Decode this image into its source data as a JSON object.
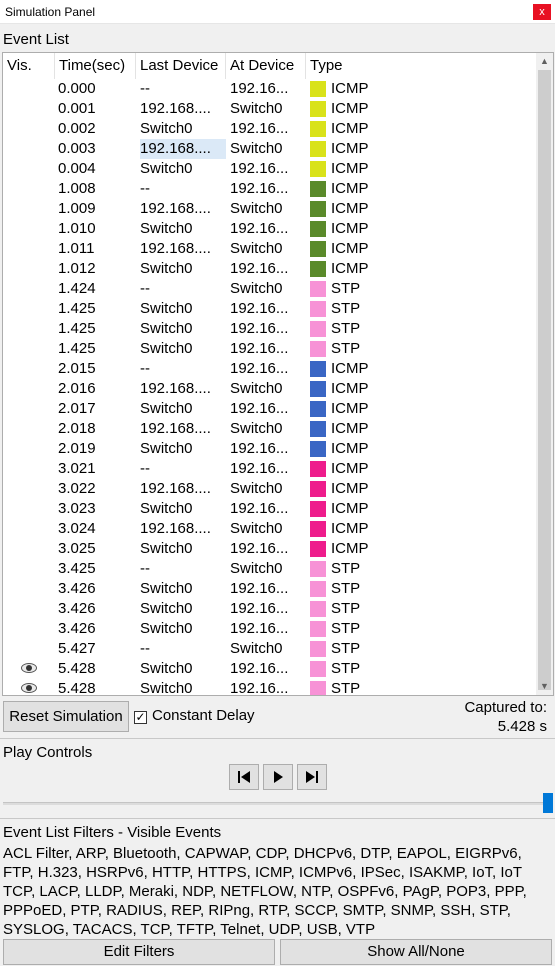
{
  "window": {
    "title": "Simulation Panel",
    "close_label": "x"
  },
  "event_list": {
    "label": "Event List",
    "columns": [
      "Vis.",
      "Time(sec)",
      "Last Device",
      "At Device",
      "Type"
    ],
    "rows": [
      {
        "vis": "",
        "time": "0.000",
        "last": "--",
        "at": "192.16...",
        "color": "#d9e21a",
        "type": "ICMP"
      },
      {
        "vis": "",
        "time": "0.001",
        "last": "192.168....",
        "at": "Switch0",
        "color": "#d9e21a",
        "type": "ICMP"
      },
      {
        "vis": "",
        "time": "0.002",
        "last": "Switch0",
        "at": "192.16...",
        "color": "#d9e21a",
        "type": "ICMP"
      },
      {
        "vis": "",
        "time": "0.003",
        "last": "192.168....",
        "at": "Switch0",
        "color": "#d9e21a",
        "type": "ICMP",
        "selected": true
      },
      {
        "vis": "",
        "time": "0.004",
        "last": "Switch0",
        "at": "192.16...",
        "color": "#d9e21a",
        "type": "ICMP"
      },
      {
        "vis": "",
        "time": "1.008",
        "last": "--",
        "at": "192.16...",
        "color": "#5a8a2a",
        "type": "ICMP"
      },
      {
        "vis": "",
        "time": "1.009",
        "last": "192.168....",
        "at": "Switch0",
        "color": "#5a8a2a",
        "type": "ICMP"
      },
      {
        "vis": "",
        "time": "1.010",
        "last": "Switch0",
        "at": "192.16...",
        "color": "#5a8a2a",
        "type": "ICMP"
      },
      {
        "vis": "",
        "time": "1.011",
        "last": "192.168....",
        "at": "Switch0",
        "color": "#5a8a2a",
        "type": "ICMP"
      },
      {
        "vis": "",
        "time": "1.012",
        "last": "Switch0",
        "at": "192.16...",
        "color": "#5a8a2a",
        "type": "ICMP"
      },
      {
        "vis": "",
        "time": "1.424",
        "last": "--",
        "at": "Switch0",
        "color": "#f792d6",
        "type": "STP"
      },
      {
        "vis": "",
        "time": "1.425",
        "last": "Switch0",
        "at": "192.16...",
        "color": "#f792d6",
        "type": "STP"
      },
      {
        "vis": "",
        "time": "1.425",
        "last": "Switch0",
        "at": "192.16...",
        "color": "#f792d6",
        "type": "STP"
      },
      {
        "vis": "",
        "time": "1.425",
        "last": "Switch0",
        "at": "192.16...",
        "color": "#f792d6",
        "type": "STP"
      },
      {
        "vis": "",
        "time": "2.015",
        "last": "--",
        "at": "192.16...",
        "color": "#3a66c4",
        "type": "ICMP"
      },
      {
        "vis": "",
        "time": "2.016",
        "last": "192.168....",
        "at": "Switch0",
        "color": "#3a66c4",
        "type": "ICMP"
      },
      {
        "vis": "",
        "time": "2.017",
        "last": "Switch0",
        "at": "192.16...",
        "color": "#3a66c4",
        "type": "ICMP"
      },
      {
        "vis": "",
        "time": "2.018",
        "last": "192.168....",
        "at": "Switch0",
        "color": "#3a66c4",
        "type": "ICMP"
      },
      {
        "vis": "",
        "time": "2.019",
        "last": "Switch0",
        "at": "192.16...",
        "color": "#3a66c4",
        "type": "ICMP"
      },
      {
        "vis": "",
        "time": "3.021",
        "last": "--",
        "at": "192.16...",
        "color": "#ee1c8c",
        "type": "ICMP"
      },
      {
        "vis": "",
        "time": "3.022",
        "last": "192.168....",
        "at": "Switch0",
        "color": "#ee1c8c",
        "type": "ICMP"
      },
      {
        "vis": "",
        "time": "3.023",
        "last": "Switch0",
        "at": "192.16...",
        "color": "#ee1c8c",
        "type": "ICMP"
      },
      {
        "vis": "",
        "time": "3.024",
        "last": "192.168....",
        "at": "Switch0",
        "color": "#ee1c8c",
        "type": "ICMP"
      },
      {
        "vis": "",
        "time": "3.025",
        "last": "Switch0",
        "at": "192.16...",
        "color": "#ee1c8c",
        "type": "ICMP"
      },
      {
        "vis": "",
        "time": "3.425",
        "last": "--",
        "at": "Switch0",
        "color": "#f792d6",
        "type": "STP"
      },
      {
        "vis": "",
        "time": "3.426",
        "last": "Switch0",
        "at": "192.16...",
        "color": "#f792d6",
        "type": "STP"
      },
      {
        "vis": "",
        "time": "3.426",
        "last": "Switch0",
        "at": "192.16...",
        "color": "#f792d6",
        "type": "STP"
      },
      {
        "vis": "",
        "time": "3.426",
        "last": "Switch0",
        "at": "192.16...",
        "color": "#f792d6",
        "type": "STP"
      },
      {
        "vis": "",
        "time": "5.427",
        "last": "--",
        "at": "Switch0",
        "color": "#f792d6",
        "type": "STP"
      },
      {
        "vis": "eye-icon",
        "time": "5.428",
        "last": "Switch0",
        "at": "192.16...",
        "color": "#f792d6",
        "type": "STP"
      },
      {
        "vis": "eye-icon",
        "time": "5.428",
        "last": "Switch0",
        "at": "192.16...",
        "color": "#f792d6",
        "type": "STP"
      }
    ]
  },
  "controls": {
    "reset_label": "Reset Simulation",
    "constant_delay_label": "Constant Delay",
    "constant_delay_checked": true,
    "captured_label": "Captured to:",
    "captured_value": "5.428 s"
  },
  "play": {
    "label": "Play Controls",
    "buttons": [
      "back-icon",
      "play-icon",
      "forward-icon"
    ]
  },
  "filters": {
    "label": "Event List Filters - Visible Events",
    "text": "ACL Filter, ARP, Bluetooth, CAPWAP, CDP, DHCPv6, DTP, EAPOL, EIGRPv6, FTP, H.323, HSRPv6, HTTP, HTTPS, ICMP, ICMPv6, IPSec, ISAKMP, IoT, IoT TCP, LACP, LLDP, Meraki, NDP, NETFLOW, NTP, OSPFv6, PAgP, POP3, PPP, PPPoED, PTP, RADIUS, REP, RIPng, RTP, SCCP, SMTP, SNMP, SSH, STP, SYSLOG, TACACS, TCP, TFTP, Telnet, UDP, USB, VTP",
    "edit_label": "Edit Filters",
    "show_all_label": "Show All/None"
  }
}
